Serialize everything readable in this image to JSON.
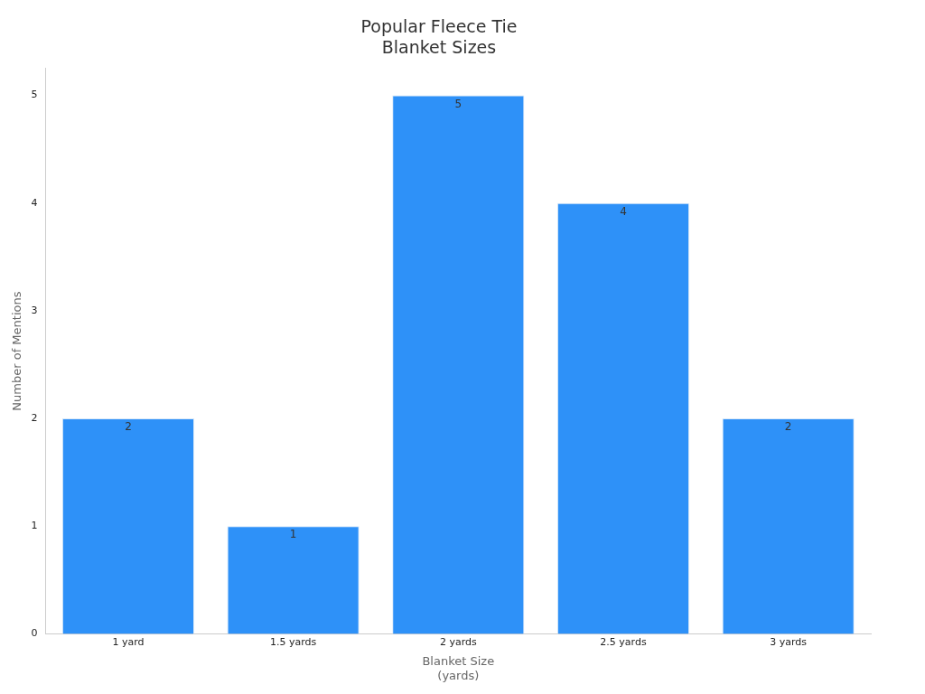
{
  "chart_data": {
    "type": "bar",
    "title": "Popular Fleece Tie\nBlanket Sizes",
    "xlabel": "Blanket Size\n(yards)",
    "ylabel": "Number of Mentions",
    "categories": [
      "1 yard",
      "1.5 yards",
      "2 yards",
      "2.5 yards",
      "3 yards"
    ],
    "values": [
      2,
      1,
      5,
      4,
      2
    ],
    "color": "#2e91f8",
    "ylim": [
      0,
      5.25
    ],
    "yticks": [
      0,
      1,
      2,
      3,
      4,
      5
    ],
    "grid": false,
    "legend": false,
    "data_labels": true
  }
}
